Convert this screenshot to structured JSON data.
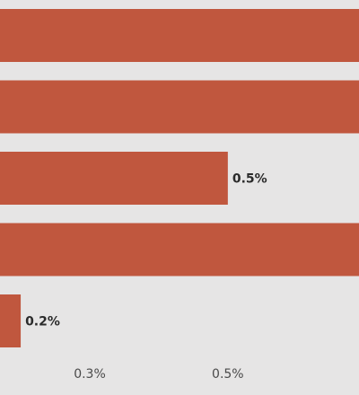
{
  "chart_data": {
    "type": "bar",
    "orientation": "horizontal",
    "title": "",
    "xlabel": "",
    "ylabel": "",
    "categories": [
      "",
      "",
      "",
      "",
      ""
    ],
    "values": [
      0.7,
      0.7,
      0.5,
      0.7,
      0.2
    ],
    "data_labels": [
      "",
      "",
      "0.5%",
      "",
      "0.2%"
    ],
    "x_ticks": [
      {
        "value": 0.3,
        "label": "0.3%"
      },
      {
        "value": 0.5,
        "label": "0.5%"
      }
    ],
    "xlim": [
      0.17,
      0.69
    ],
    "grid": false,
    "legend": "none",
    "colors": {
      "bar": "#c0573e",
      "background": "#e6e5e5",
      "tick_text": "#4a4a4a",
      "label_text": "#2b2b2b"
    }
  }
}
